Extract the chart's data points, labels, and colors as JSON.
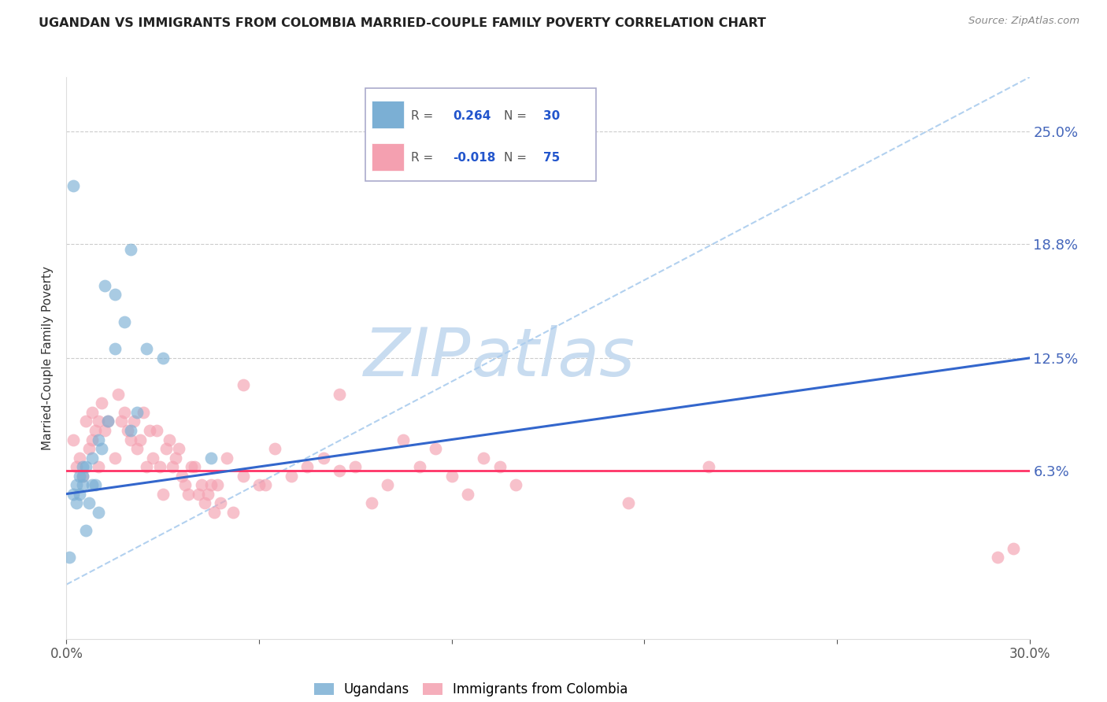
{
  "title": "UGANDAN VS IMMIGRANTS FROM COLOMBIA MARRIED-COUPLE FAMILY POVERTY CORRELATION CHART",
  "source": "Source: ZipAtlas.com",
  "ylabel": "Married-Couple Family Poverty",
  "xmin": 0.0,
  "xmax": 30.0,
  "ymin": -3.0,
  "ymax": 28.0,
  "ytick_vals": [
    6.3,
    12.5,
    18.8,
    25.0
  ],
  "ytick_labels": [
    "6.3%",
    "12.5%",
    "18.8%",
    "25.0%"
  ],
  "blue_color": "#7BAFD4",
  "pink_color": "#F4A0B0",
  "blue_line_color": "#3366CC",
  "pink_line_color": "#FF3366",
  "diag_line_color": "#AACCEE",
  "legend_r1": "0.264",
  "legend_n1": "30",
  "legend_r2": "-0.018",
  "legend_n2": "75",
  "ugandan_x": [
    0.1,
    0.2,
    0.2,
    0.3,
    0.3,
    0.4,
    0.4,
    0.5,
    0.5,
    0.5,
    0.6,
    0.6,
    0.7,
    0.8,
    0.8,
    0.9,
    1.0,
    1.0,
    1.1,
    1.2,
    1.3,
    1.5,
    1.5,
    1.8,
    2.0,
    2.0,
    2.2,
    2.5,
    3.0,
    4.5
  ],
  "ugandan_y": [
    1.5,
    5.0,
    22.0,
    4.5,
    5.5,
    5.0,
    6.0,
    5.5,
    6.0,
    6.5,
    3.0,
    6.5,
    4.5,
    5.5,
    7.0,
    5.5,
    4.0,
    8.0,
    7.5,
    16.5,
    9.0,
    13.0,
    16.0,
    14.5,
    8.5,
    18.5,
    9.5,
    13.0,
    12.5,
    7.0
  ],
  "colombia_x": [
    0.2,
    0.3,
    0.4,
    0.5,
    0.6,
    0.7,
    0.8,
    0.8,
    0.9,
    1.0,
    1.0,
    1.1,
    1.2,
    1.3,
    1.5,
    1.6,
    1.7,
    1.8,
    1.9,
    2.0,
    2.1,
    2.2,
    2.3,
    2.4,
    2.5,
    2.6,
    2.7,
    2.8,
    2.9,
    3.0,
    3.1,
    3.2,
    3.3,
    3.4,
    3.5,
    3.6,
    3.7,
    3.8,
    3.9,
    4.0,
    4.1,
    4.2,
    4.3,
    4.4,
    4.5,
    4.6,
    4.7,
    4.8,
    5.0,
    5.2,
    5.5,
    5.5,
    6.0,
    6.2,
    6.5,
    7.0,
    7.5,
    8.0,
    8.5,
    9.0,
    9.5,
    10.0,
    10.5,
    11.0,
    11.5,
    12.0,
    12.5,
    13.0,
    13.5,
    14.0,
    17.5,
    20.0,
    29.0,
    29.5,
    8.5
  ],
  "colombia_y": [
    8.0,
    6.5,
    7.0,
    6.0,
    9.0,
    7.5,
    8.0,
    9.5,
    8.5,
    9.0,
    6.5,
    10.0,
    8.5,
    9.0,
    7.0,
    10.5,
    9.0,
    9.5,
    8.5,
    8.0,
    9.0,
    7.5,
    8.0,
    9.5,
    6.5,
    8.5,
    7.0,
    8.5,
    6.5,
    5.0,
    7.5,
    8.0,
    6.5,
    7.0,
    7.5,
    6.0,
    5.5,
    5.0,
    6.5,
    6.5,
    5.0,
    5.5,
    4.5,
    5.0,
    5.5,
    4.0,
    5.5,
    4.5,
    7.0,
    4.0,
    6.0,
    11.0,
    5.5,
    5.5,
    7.5,
    6.0,
    6.5,
    7.0,
    10.5,
    6.5,
    4.5,
    5.5,
    8.0,
    6.5,
    7.5,
    6.0,
    5.0,
    7.0,
    6.5,
    5.5,
    4.5,
    6.5,
    1.5,
    2.0,
    6.3
  ]
}
